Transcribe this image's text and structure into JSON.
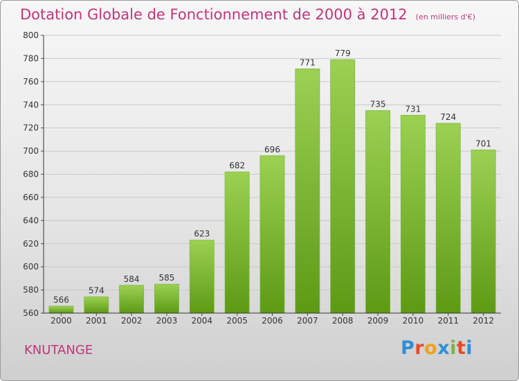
{
  "title": "Dotation Globale de Fonctionnement de 2000 à 2012",
  "subtitle": "(en milliers d'€)",
  "commune": "KNUTANGE",
  "logo": {
    "text": "Proxiti",
    "colors": [
      "#2f8fd8",
      "#e34b2a",
      "#f0a21a",
      "#2f8fd8",
      "#7ab648",
      "#e34b2a",
      "#2f8fd8"
    ]
  },
  "colors": {
    "title": "#c0357a",
    "bar_top": "#9cd153",
    "bar_bottom": "#5d9a14",
    "grid": "#c8c8c8"
  },
  "chart_data": {
    "type": "bar",
    "categories": [
      "2000",
      "2001",
      "2002",
      "2003",
      "2004",
      "2005",
      "2006",
      "2007",
      "2008",
      "2009",
      "2010",
      "2011",
      "2012"
    ],
    "values": [
      566,
      574,
      584,
      585,
      623,
      682,
      696,
      771,
      779,
      735,
      731,
      724,
      701
    ],
    "ylim": [
      560,
      800
    ],
    "yticks": [
      560,
      580,
      600,
      620,
      640,
      660,
      680,
      700,
      720,
      740,
      760,
      780,
      800
    ],
    "grid": true,
    "xlabel": "",
    "ylabel": ""
  }
}
